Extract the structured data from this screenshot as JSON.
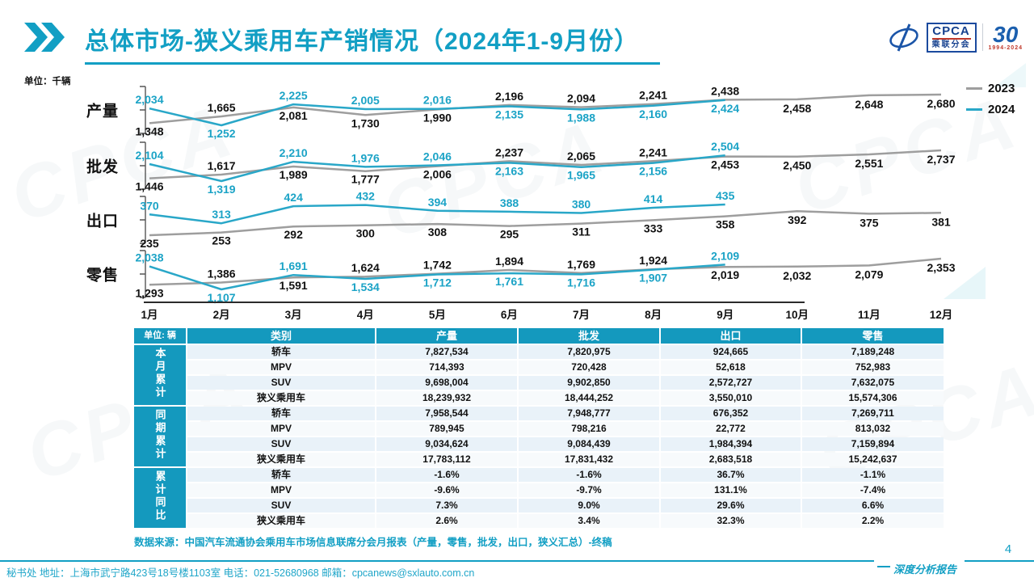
{
  "header": {
    "title": "总体市场-狭义乘用车产销情况（2024年1-9月份）",
    "logo": {
      "cpca": "CPCA",
      "sub": "乘联分会",
      "anniversary": "30",
      "years": "1994-2024"
    }
  },
  "watermark": {
    "text": "CPCA"
  },
  "chart_data": {
    "type": "line",
    "unit_note": "单位：千辆",
    "categories": [
      "1月",
      "2月",
      "3月",
      "4月",
      "5月",
      "6月",
      "7月",
      "8月",
      "9月",
      "10月",
      "11月",
      "12月"
    ],
    "legend": [
      "2023",
      "2024"
    ],
    "colors": {
      "series_2023": "#9e9e9e",
      "series_2024": "#29a7c8"
    },
    "legend_position": "top-right",
    "grid": false,
    "rows": [
      {
        "key": "production",
        "label": "产量",
        "series": [
          {
            "name": "2023",
            "values": [
              1348,
              1665,
              2081,
              1730,
              1990,
              2196,
              2094,
              2241,
              2438,
              2458,
              2648,
              2680
            ]
          },
          {
            "name": "2024",
            "values": [
              2034,
              1252,
              2225,
              2005,
              2016,
              2135,
              1988,
              2160,
              2424
            ]
          }
        ]
      },
      {
        "key": "wholesale",
        "label": "批发",
        "series": [
          {
            "name": "2023",
            "values": [
              1446,
              1617,
              1989,
              1777,
              2006,
              2237,
              2065,
              2241,
              2453,
              2450,
              2551,
              2737
            ]
          },
          {
            "name": "2024",
            "values": [
              2104,
              1319,
              2210,
              1976,
              2046,
              2163,
              1965,
              2156,
              2504
            ]
          }
        ]
      },
      {
        "key": "export",
        "label": "出口",
        "series": [
          {
            "name": "2023",
            "values": [
              235,
              253,
              292,
              300,
              308,
              295,
              311,
              333,
              358,
              392,
              375,
              381
            ]
          },
          {
            "name": "2024",
            "values": [
              370,
              313,
              424,
              432,
              394,
              388,
              380,
              414,
              435
            ]
          }
        ]
      },
      {
        "key": "retail",
        "label": "零售",
        "series": [
          {
            "name": "2023",
            "values": [
              1293,
              1386,
              1591,
              1624,
              1742,
              1894,
              1769,
              1924,
              2019,
              2032,
              2079,
              2353
            ]
          },
          {
            "name": "2024",
            "values": [
              2038,
              1107,
              1691,
              1534,
              1712,
              1761,
              1716,
              1907,
              2109
            ]
          }
        ]
      }
    ]
  },
  "table": {
    "unit_note": "单位: 辆",
    "columns": [
      "类别",
      "产量",
      "批发",
      "出口",
      "零售"
    ],
    "sections": [
      {
        "name": "本月累计",
        "rows": [
          [
            "轿车",
            "7,827,534",
            "7,820,975",
            "924,665",
            "7,189,248"
          ],
          [
            "MPV",
            "714,393",
            "720,428",
            "52,618",
            "752,983"
          ],
          [
            "SUV",
            "9,698,004",
            "9,902,850",
            "2,572,727",
            "7,632,075"
          ],
          [
            "狭义乘用车",
            "18,239,932",
            "18,444,252",
            "3,550,010",
            "15,574,306"
          ]
        ]
      },
      {
        "name": "同期累计",
        "rows": [
          [
            "轿车",
            "7,958,544",
            "7,948,777",
            "676,352",
            "7,269,711"
          ],
          [
            "MPV",
            "789,945",
            "798,216",
            "22,772",
            "813,032"
          ],
          [
            "SUV",
            "9,034,624",
            "9,084,439",
            "1,984,394",
            "7,159,894"
          ],
          [
            "狭义乘用车",
            "17,783,112",
            "17,831,432",
            "2,683,518",
            "15,242,637"
          ]
        ]
      },
      {
        "name": "累计同比",
        "rows": [
          [
            "轿车",
            "-1.6%",
            "-1.6%",
            "36.7%",
            "-1.1%"
          ],
          [
            "MPV",
            "-9.6%",
            "-9.7%",
            "131.1%",
            "-7.4%"
          ],
          [
            "SUV",
            "7.3%",
            "9.0%",
            "29.6%",
            "6.6%"
          ],
          [
            "狭义乘用车",
            "2.6%",
            "3.4%",
            "32.3%",
            "2.2%"
          ]
        ]
      }
    ]
  },
  "footer": {
    "source": "数据来源：中国汽车流通协会乘用车市场信息联席分会月报表（产量，零售，批发，出口，狭义汇总）-终稿",
    "page": "4",
    "report_label": "深度分析报告",
    "contact": "秘书处  地址：上海市武宁路423号18号楼1103室  电话：021-52680968   邮箱：cpcanews@sxlauto.com.cn"
  }
}
